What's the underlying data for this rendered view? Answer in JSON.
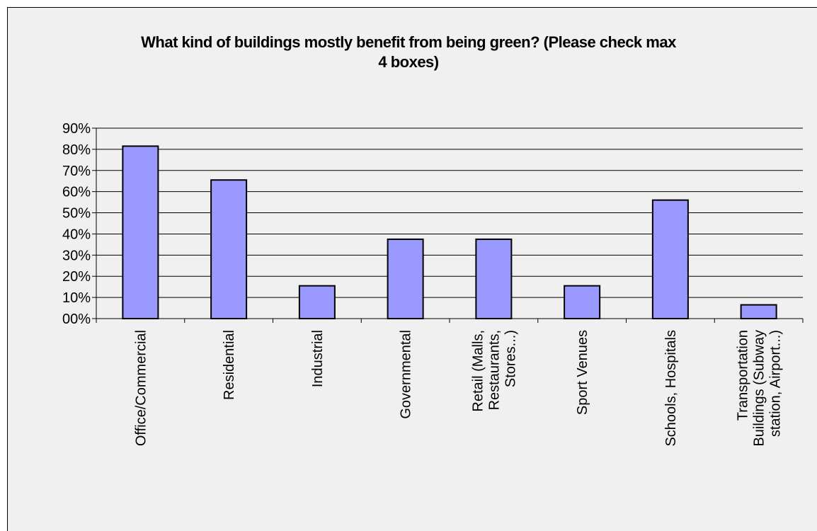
{
  "chart_data": {
    "type": "bar",
    "title_lines": [
      "What kind of buildings mostly benefit from being green? (Please check max",
      "4 boxes)"
    ],
    "categories": [
      [
        "Office/Commercial"
      ],
      [
        "Residential"
      ],
      [
        "Industrial"
      ],
      [
        "Governmental"
      ],
      [
        "Retail (Malls,",
        "Restaurants,",
        "Stores...)"
      ],
      [
        "Sport Venues"
      ],
      [
        "Schools, Hospitals"
      ],
      [
        "Transportation",
        "Buildings (Subway",
        "station, Airport...)"
      ]
    ],
    "values": [
      81.5,
      65.5,
      15.5,
      37.5,
      37.5,
      15.5,
      56,
      6.5
    ],
    "y_ticks": [
      "00%",
      "10%",
      "20%",
      "30%",
      "40%",
      "50%",
      "60%",
      "70%",
      "80%",
      "90%"
    ],
    "ylim": [
      0,
      90
    ],
    "grid": true,
    "colors": {
      "bar_fill": "#9999ff",
      "bar_stroke": "#000000",
      "background": "#f0f0f0"
    }
  }
}
